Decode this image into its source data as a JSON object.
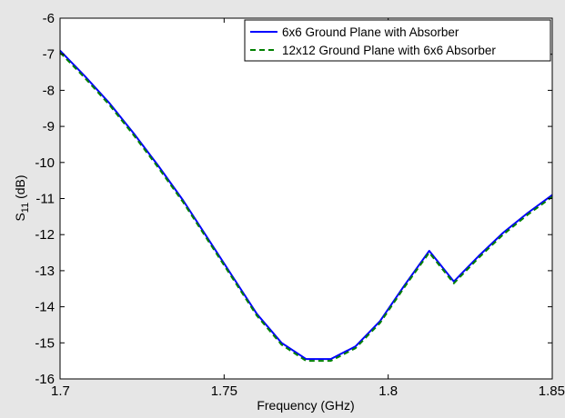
{
  "chart_data": {
    "type": "line",
    "title": "",
    "xlabel": "Frequency (GHz)",
    "ylabel_main": "S",
    "ylabel_sub": "11",
    "ylabel_unit": " (dB)",
    "xlim": [
      1.7,
      1.85
    ],
    "ylim": [
      -16,
      -6
    ],
    "xticks": [
      1.7,
      1.75,
      1.8,
      1.85
    ],
    "xtick_labels": [
      "1.7",
      "1.75",
      "1.8",
      "1.85"
    ],
    "yticks": [
      -16,
      -15,
      -14,
      -13,
      -12,
      -11,
      -10,
      -9,
      -8,
      -7,
      -6
    ],
    "ytick_labels": [
      "-16",
      "-15",
      "-14",
      "-13",
      "-12",
      "-11",
      "-10",
      "-9",
      "-8",
      "-7",
      "-6"
    ],
    "grid": false,
    "legend_position": "top-right",
    "series": [
      {
        "name": "6x6 Ground Plane with Absorber",
        "color": "#0000ff",
        "style": "solid",
        "x": [
          1.7,
          1.7075,
          1.715,
          1.7225,
          1.73,
          1.7375,
          1.745,
          1.7525,
          1.76,
          1.7675,
          1.775,
          1.7825,
          1.79,
          1.7975,
          1.805,
          1.8125,
          1.82,
          1.8275,
          1.835,
          1.8425,
          1.85
        ],
        "y": [
          -6.9,
          -7.6,
          -8.35,
          -9.2,
          -10.1,
          -11.05,
          -12.1,
          -13.15,
          -14.2,
          -15.0,
          -15.45,
          -15.45,
          -15.1,
          -14.4,
          -13.4,
          -12.45,
          -13.3,
          -12.6,
          -11.95,
          -11.4,
          -10.9
        ]
      },
      {
        "name": "12x12 Ground Plane with 6x6 Absorber",
        "color": "#008000",
        "style": "dashed",
        "x": [
          1.7,
          1.7075,
          1.715,
          1.7225,
          1.73,
          1.7375,
          1.745,
          1.7525,
          1.76,
          1.7675,
          1.775,
          1.7825,
          1.79,
          1.7975,
          1.805,
          1.8125,
          1.82,
          1.8275,
          1.835,
          1.8425,
          1.85
        ],
        "y": [
          -6.95,
          -7.65,
          -8.4,
          -9.25,
          -10.15,
          -11.1,
          -12.15,
          -13.2,
          -14.25,
          -15.05,
          -15.5,
          -15.5,
          -15.15,
          -14.45,
          -13.45,
          -12.5,
          -13.35,
          -12.65,
          -12.0,
          -11.45,
          -10.95
        ]
      }
    ]
  }
}
